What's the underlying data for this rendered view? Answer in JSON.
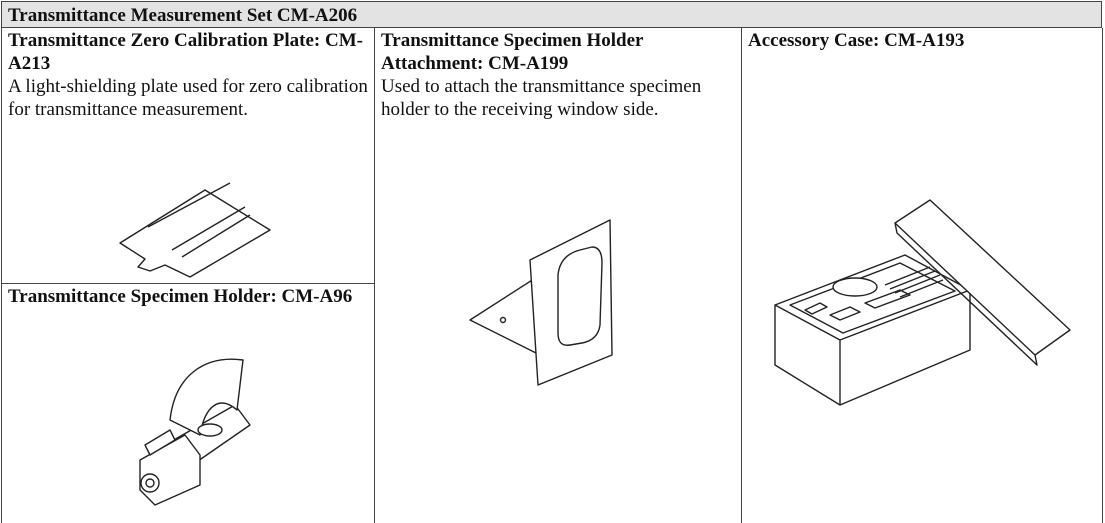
{
  "header": {
    "title": "Transmittance Measurement Set  CM-A206"
  },
  "cells": [
    {
      "title": "Transmittance Zero Calibration Plate: CM-A213",
      "description": "A light-shielding plate used for zero calibration for transmittance measurement."
    },
    {
      "title": "Transmittance Specimen Holder: CM-A96"
    },
    {
      "title": "Transmittance Specimen Holder Attachment: CM-A199",
      "description": "Used to attach the transmittance specimen holder to the receiving window side."
    },
    {
      "title": "Accessory Case: CM-A193"
    }
  ]
}
